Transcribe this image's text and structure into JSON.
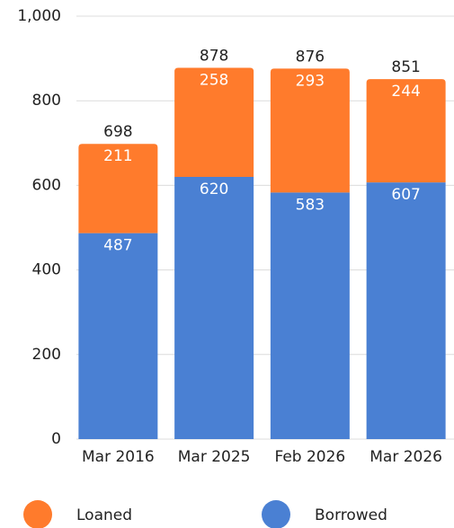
{
  "chart_data": {
    "type": "stacked_bar",
    "categories": [
      "Mar 2016",
      "Mar 2025",
      "Feb 2026",
      "Mar 2026"
    ],
    "series": [
      {
        "name": "Borrowed",
        "color": "#4a80d3",
        "values": [
          487,
          620,
          583,
          607
        ]
      },
      {
        "name": "Loaned",
        "color": "#ff7b2c",
        "values": [
          211,
          258,
          293,
          244
        ]
      }
    ],
    "totals": [
      698,
      878,
      876,
      851
    ],
    "ylim": [
      0,
      1000
    ],
    "yticks": [
      0,
      200,
      400,
      600,
      800,
      {
        "value": 1000,
        "label": "1,000"
      }
    ],
    "grid": true,
    "legend": "bottom"
  }
}
